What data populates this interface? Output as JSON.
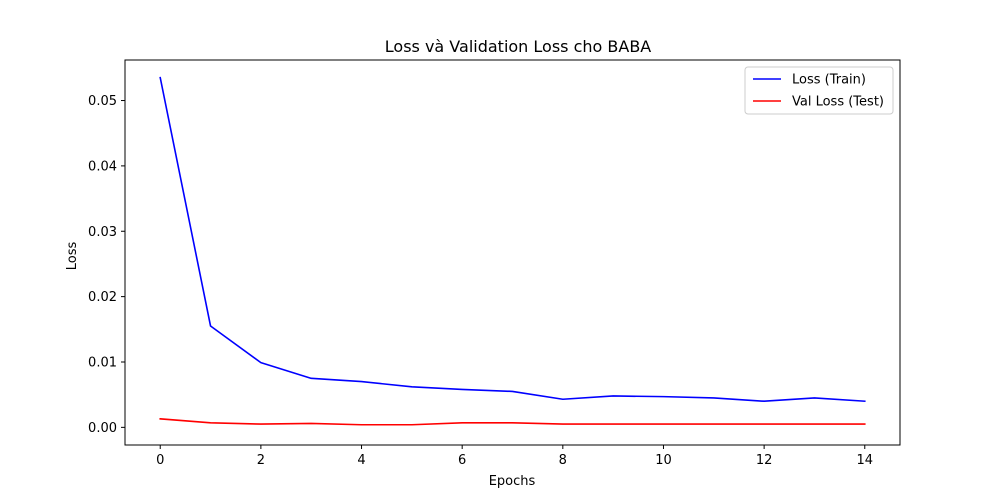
{
  "chart_data": {
    "type": "line",
    "title": "Loss và Validation Loss cho BABA",
    "xlabel": "Epochs",
    "ylabel": "Loss",
    "xlim": [
      -0.7,
      14.7
    ],
    "ylim": [
      -0.0027,
      0.0562
    ],
    "xticks": [
      0,
      2,
      4,
      6,
      8,
      10,
      12,
      14
    ],
    "yticks": [
      0.0,
      0.01,
      0.02,
      0.03,
      0.04,
      0.05
    ],
    "ytick_labels": [
      "0.00",
      "0.01",
      "0.02",
      "0.03",
      "0.04",
      "0.05"
    ],
    "grid": false,
    "legend_position": "top-right",
    "x": [
      0,
      1,
      2,
      3,
      4,
      5,
      6,
      7,
      8,
      9,
      10,
      11,
      12,
      13,
      14
    ],
    "series": [
      {
        "name": "Loss (Train)",
        "color": "#0000ff",
        "values": [
          0.0535,
          0.0155,
          0.0099,
          0.0075,
          0.007,
          0.0062,
          0.0058,
          0.0055,
          0.0043,
          0.0048,
          0.0047,
          0.0045,
          0.004,
          0.0045,
          0.004
        ]
      },
      {
        "name": "Val Loss (Test)",
        "color": "#ff0000",
        "values": [
          0.0013,
          0.0007,
          0.0005,
          0.0006,
          0.0004,
          0.0004,
          0.0007,
          0.0007,
          0.0005,
          0.0005,
          0.0005,
          0.0005,
          0.0005,
          0.0005,
          0.0005
        ]
      }
    ]
  }
}
